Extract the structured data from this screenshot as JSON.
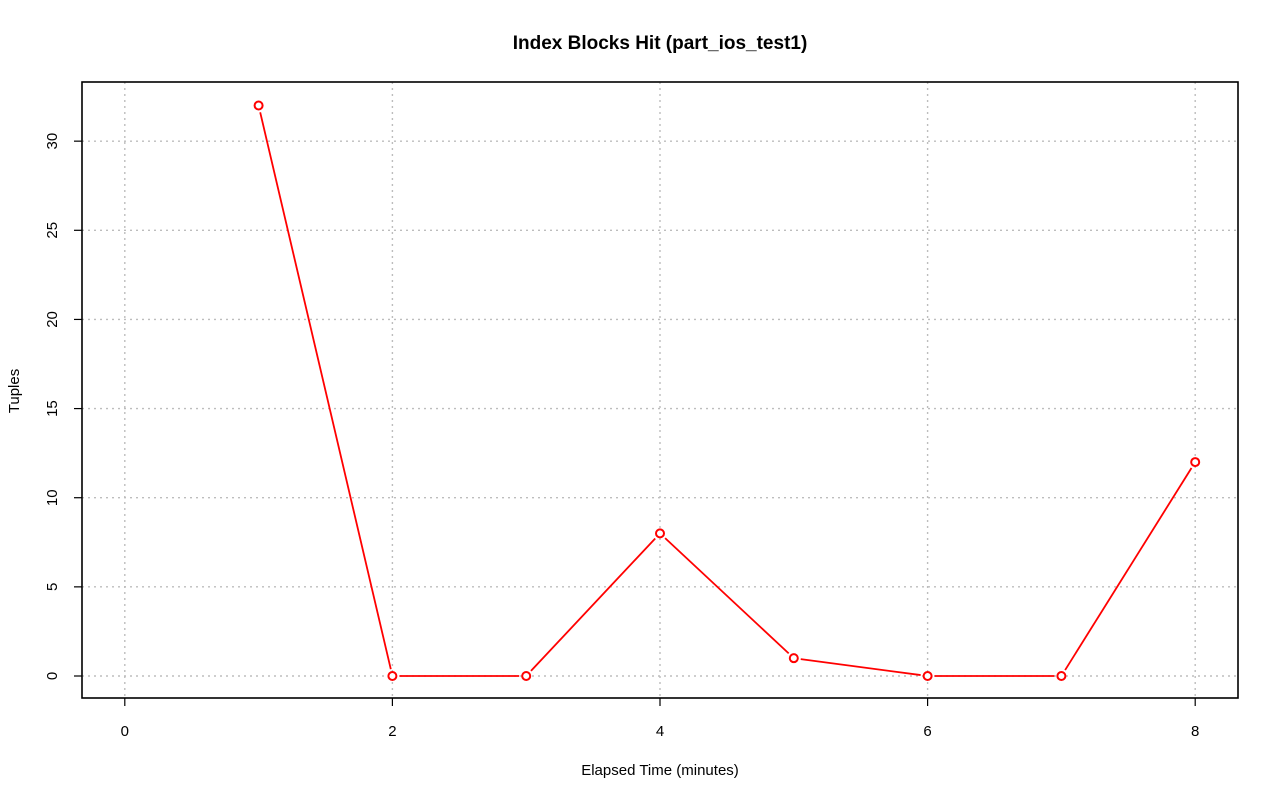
{
  "chart_data": {
    "type": "line",
    "title": "Index Blocks Hit (part_ios_test1)",
    "xlabel": "Elapsed Time (minutes)",
    "ylabel": "Tuples",
    "xlim": [
      0,
      8
    ],
    "ylim": [
      0,
      32
    ],
    "x_ticks": [
      0,
      2,
      4,
      6,
      8
    ],
    "y_ticks": [
      0,
      5,
      10,
      15,
      20,
      25,
      30
    ],
    "grid": true,
    "series": [
      {
        "color": "#ff0000",
        "x": [
          1,
          2,
          3,
          4,
          5,
          6,
          7,
          8
        ],
        "values": [
          32,
          0,
          0,
          8,
          1,
          0,
          0,
          12
        ]
      }
    ]
  }
}
